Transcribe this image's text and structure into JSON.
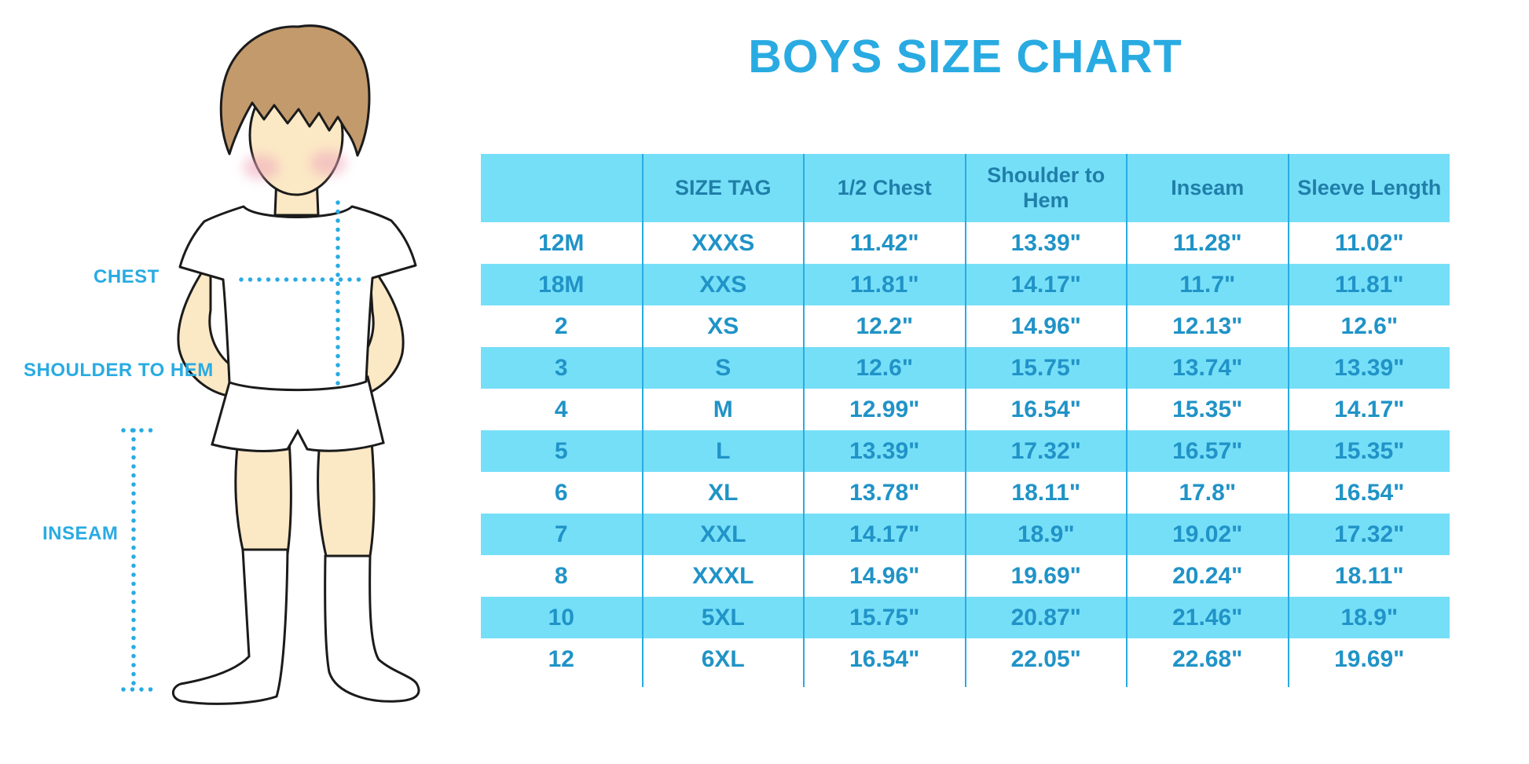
{
  "title": "BOYS SIZE CHART",
  "figure": {
    "description": "outline illustration of a boy in white t-shirt, shorts and knee socks with dotted measurement guides",
    "labels": {
      "chest": "CHEST",
      "shoulder_to_hem": "SHOULDER TO HEM",
      "inseam": "INSEAM"
    },
    "colors": {
      "hair": "#C39A6C",
      "skin": "#FBE8C5",
      "cheek": "#F0A9BD",
      "outline": "#1b1b1b",
      "garments": "#ffffff"
    }
  },
  "colors": {
    "accent": "#29ABE2",
    "table_header_bg": "#76DFF8",
    "table_alt_row_bg": "#76DFF8",
    "table_header_text": "#1F7FA9",
    "table_cell_text": "#2093C7",
    "background": "#ffffff"
  },
  "chart_data": {
    "type": "table",
    "title": "BOYS SIZE CHART",
    "units": "inches",
    "columns": [
      "",
      "SIZE TAG",
      "1/2 Chest",
      "Shoulder to Hem",
      "Inseam",
      "Sleeve Length"
    ],
    "rows": [
      [
        "12M",
        "XXXS",
        "11.42\"",
        "13.39\"",
        "11.28\"",
        "11.02\""
      ],
      [
        "18M",
        "XXS",
        "11.81\"",
        "14.17\"",
        "11.7\"",
        "11.81\""
      ],
      [
        "2",
        "XS",
        "12.2\"",
        "14.96\"",
        "12.13\"",
        "12.6\""
      ],
      [
        "3",
        "S",
        "12.6\"",
        "15.75\"",
        "13.74\"",
        "13.39\""
      ],
      [
        "4",
        "M",
        "12.99\"",
        "16.54\"",
        "15.35\"",
        "14.17\""
      ],
      [
        "5",
        "L",
        "13.39\"",
        "17.32\"",
        "16.57\"",
        "15.35\""
      ],
      [
        "6",
        "XL",
        "13.78\"",
        "18.11\"",
        "17.8\"",
        "16.54\""
      ],
      [
        "7",
        "XXL",
        "14.17\"",
        "18.9\"",
        "19.02\"",
        "17.32\""
      ],
      [
        "8",
        "XXXL",
        "14.96\"",
        "19.69\"",
        "20.24\"",
        "18.11\""
      ],
      [
        "10",
        "5XL",
        "15.75\"",
        "20.87\"",
        "21.46\"",
        "18.9\""
      ],
      [
        "12",
        "6XL",
        "16.54\"",
        "22.05\"",
        "22.68\"",
        "19.69\""
      ]
    ],
    "layout_hints": {
      "row_shading": "alternating white and light cyan, first data row white",
      "column_dividers": "#29ABE2 vertical lines, no outer border"
    }
  }
}
